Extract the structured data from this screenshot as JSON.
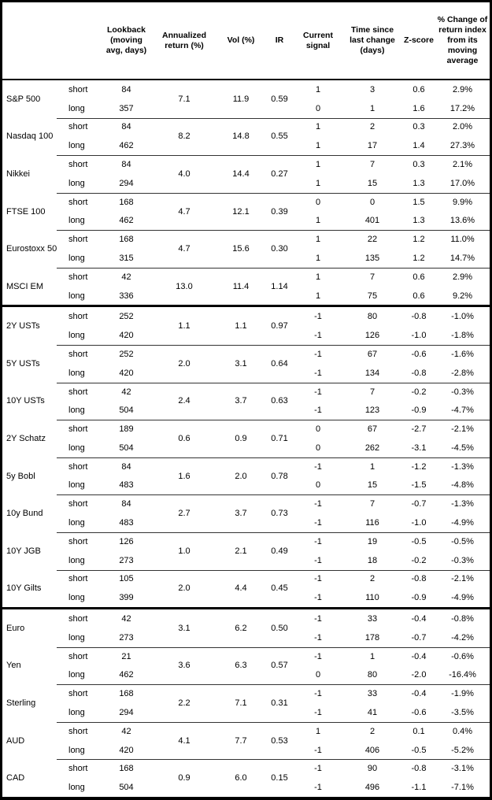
{
  "header": {
    "corner": "",
    "labels": [
      "Lookback\n(moving\navg, days)",
      "Annualized\nreturn (%)",
      "Vol (%)",
      "IR",
      "Current\nsignal",
      "Time since\nlast change\n(days)",
      "Z-score",
      "% Change of\nreturn index\nfrom its\nmoving\naverage"
    ]
  },
  "groups": [
    {
      "name": "S&P 500",
      "section": "equities",
      "annualized_return": "7.1",
      "vol": "11.9",
      "ir": "0.59",
      "rows": [
        {
          "side": "short",
          "lookback": "84",
          "signal": "1",
          "time_since_change": "3",
          "z_score": "0.6",
          "pct_change": "2.9%"
        },
        {
          "side": "long",
          "lookback": "357",
          "signal": "0",
          "time_since_change": "1",
          "z_score": "1.6",
          "pct_change": "17.2%"
        }
      ]
    },
    {
      "name": "Nasdaq 100",
      "section": "equities",
      "annualized_return": "8.2",
      "vol": "14.8",
      "ir": "0.55",
      "rows": [
        {
          "side": "short",
          "lookback": "84",
          "signal": "1",
          "time_since_change": "2",
          "z_score": "0.3",
          "pct_change": "2.0%"
        },
        {
          "side": "long",
          "lookback": "462",
          "signal": "1",
          "time_since_change": "17",
          "z_score": "1.4",
          "pct_change": "27.3%"
        }
      ]
    },
    {
      "name": "Nikkei",
      "section": "equities",
      "annualized_return": "4.0",
      "vol": "14.4",
      "ir": "0.27",
      "rows": [
        {
          "side": "short",
          "lookback": "84",
          "signal": "1",
          "time_since_change": "7",
          "z_score": "0.3",
          "pct_change": "2.1%"
        },
        {
          "side": "long",
          "lookback": "294",
          "signal": "1",
          "time_since_change": "15",
          "z_score": "1.3",
          "pct_change": "17.0%"
        }
      ]
    },
    {
      "name": "FTSE 100",
      "section": "equities",
      "annualized_return": "4.7",
      "vol": "12.1",
      "ir": "0.39",
      "rows": [
        {
          "side": "short",
          "lookback": "168",
          "signal": "0",
          "time_since_change": "0",
          "z_score": "1.5",
          "pct_change": "9.9%"
        },
        {
          "side": "long",
          "lookback": "462",
          "signal": "1",
          "time_since_change": "401",
          "z_score": "1.3",
          "pct_change": "13.6%"
        }
      ]
    },
    {
      "name": "Eurostoxx 50",
      "section": "equities",
      "annualized_return": "4.7",
      "vol": "15.6",
      "ir": "0.30",
      "rows": [
        {
          "side": "short",
          "lookback": "168",
          "signal": "1",
          "time_since_change": "22",
          "z_score": "1.2",
          "pct_change": "11.0%"
        },
        {
          "side": "long",
          "lookback": "315",
          "signal": "1",
          "time_since_change": "135",
          "z_score": "1.2",
          "pct_change": "14.7%"
        }
      ]
    },
    {
      "name": "MSCI EM",
      "section": "equities",
      "annualized_return": "13.0",
      "vol": "11.4",
      "ir": "1.14",
      "rows": [
        {
          "side": "short",
          "lookback": "42",
          "signal": "1",
          "time_since_change": "7",
          "z_score": "0.6",
          "pct_change": "2.9%"
        },
        {
          "side": "long",
          "lookback": "336",
          "signal": "1",
          "time_since_change": "75",
          "z_score": "0.6",
          "pct_change": "9.2%"
        }
      ]
    },
    {
      "name": "2Y USTs",
      "section": "bonds",
      "annualized_return": "1.1",
      "vol": "1.1",
      "ir": "0.97",
      "rows": [
        {
          "side": "short",
          "lookback": "252",
          "signal": "-1",
          "time_since_change": "80",
          "z_score": "-0.8",
          "pct_change": "-1.0%"
        },
        {
          "side": "long",
          "lookback": "420",
          "signal": "-1",
          "time_since_change": "126",
          "z_score": "-1.0",
          "pct_change": "-1.8%"
        }
      ]
    },
    {
      "name": "5Y USTs",
      "section": "bonds",
      "annualized_return": "2.0",
      "vol": "3.1",
      "ir": "0.64",
      "rows": [
        {
          "side": "short",
          "lookback": "252",
          "signal": "-1",
          "time_since_change": "67",
          "z_score": "-0.6",
          "pct_change": "-1.6%"
        },
        {
          "side": "long",
          "lookback": "420",
          "signal": "-1",
          "time_since_change": "134",
          "z_score": "-0.8",
          "pct_change": "-2.8%"
        }
      ]
    },
    {
      "name": "10Y USTs",
      "section": "bonds",
      "annualized_return": "2.4",
      "vol": "3.7",
      "ir": "0.63",
      "rows": [
        {
          "side": "short",
          "lookback": "42",
          "signal": "-1",
          "time_since_change": "7",
          "z_score": "-0.2",
          "pct_change": "-0.3%"
        },
        {
          "side": "long",
          "lookback": "504",
          "signal": "-1",
          "time_since_change": "123",
          "z_score": "-0.9",
          "pct_change": "-4.7%"
        }
      ]
    },
    {
      "name": "2Y Schatz",
      "section": "bonds",
      "annualized_return": "0.6",
      "vol": "0.9",
      "ir": "0.71",
      "rows": [
        {
          "side": "short",
          "lookback": "189",
          "signal": "0",
          "time_since_change": "67",
          "z_score": "-2.7",
          "pct_change": "-2.1%"
        },
        {
          "side": "long",
          "lookback": "504",
          "signal": "0",
          "time_since_change": "262",
          "z_score": "-3.1",
          "pct_change": "-4.5%"
        }
      ]
    },
    {
      "name": "5y Bobl",
      "section": "bonds",
      "annualized_return": "1.6",
      "vol": "2.0",
      "ir": "0.78",
      "rows": [
        {
          "side": "short",
          "lookback": "84",
          "signal": "-1",
          "time_since_change": "1",
          "z_score": "-1.2",
          "pct_change": "-1.3%"
        },
        {
          "side": "long",
          "lookback": "483",
          "signal": "0",
          "time_since_change": "15",
          "z_score": "-1.5",
          "pct_change": "-4.8%"
        }
      ]
    },
    {
      "name": "10y Bund",
      "section": "bonds",
      "annualized_return": "2.7",
      "vol": "3.7",
      "ir": "0.73",
      "rows": [
        {
          "side": "short",
          "lookback": "84",
          "signal": "-1",
          "time_since_change": "7",
          "z_score": "-0.7",
          "pct_change": "-1.3%"
        },
        {
          "side": "long",
          "lookback": "483",
          "signal": "-1",
          "time_since_change": "116",
          "z_score": "-1.0",
          "pct_change": "-4.9%"
        }
      ]
    },
    {
      "name": "10Y JGB",
      "section": "bonds",
      "annualized_return": "1.0",
      "vol": "2.1",
      "ir": "0.49",
      "rows": [
        {
          "side": "short",
          "lookback": "126",
          "signal": "-1",
          "time_since_change": "19",
          "z_score": "-0.5",
          "pct_change": "-0.5%"
        },
        {
          "side": "long",
          "lookback": "273",
          "signal": "-1",
          "time_since_change": "18",
          "z_score": "-0.2",
          "pct_change": "-0.3%"
        }
      ]
    },
    {
      "name": "10Y Gilts",
      "section": "bonds",
      "annualized_return": "2.0",
      "vol": "4.4",
      "ir": "0.45",
      "rows": [
        {
          "side": "short",
          "lookback": "105",
          "signal": "-1",
          "time_since_change": "2",
          "z_score": "-0.8",
          "pct_change": "-2.1%"
        },
        {
          "side": "long",
          "lookback": "399",
          "signal": "-1",
          "time_since_change": "110",
          "z_score": "-0.9",
          "pct_change": "-4.9%"
        }
      ]
    },
    {
      "name": "Euro",
      "section": "fx",
      "annualized_return": "3.1",
      "vol": "6.2",
      "ir": "0.50",
      "rows": [
        {
          "side": "short",
          "lookback": "42",
          "signal": "-1",
          "time_since_change": "33",
          "z_score": "-0.4",
          "pct_change": "-0.8%"
        },
        {
          "side": "long",
          "lookback": "273",
          "signal": "-1",
          "time_since_change": "178",
          "z_score": "-0.7",
          "pct_change": "-4.2%"
        }
      ]
    },
    {
      "name": "Yen",
      "section": "fx",
      "annualized_return": "3.6",
      "vol": "6.3",
      "ir": "0.57",
      "rows": [
        {
          "side": "short",
          "lookback": "21",
          "signal": "-1",
          "time_since_change": "1",
          "z_score": "-0.4",
          "pct_change": "-0.6%"
        },
        {
          "side": "long",
          "lookback": "462",
          "signal": "0",
          "time_since_change": "80",
          "z_score": "-2.0",
          "pct_change": "-16.4%"
        }
      ]
    },
    {
      "name": "Sterling",
      "section": "fx",
      "annualized_return": "2.2",
      "vol": "7.1",
      "ir": "0.31",
      "rows": [
        {
          "side": "short",
          "lookback": "168",
          "signal": "-1",
          "time_since_change": "33",
          "z_score": "-0.4",
          "pct_change": "-1.9%"
        },
        {
          "side": "long",
          "lookback": "294",
          "signal": "-1",
          "time_since_change": "41",
          "z_score": "-0.6",
          "pct_change": "-3.5%"
        }
      ]
    },
    {
      "name": "AUD",
      "section": "fx",
      "annualized_return": "4.1",
      "vol": "7.7",
      "ir": "0.53",
      "rows": [
        {
          "side": "short",
          "lookback": "42",
          "signal": "1",
          "time_since_change": "2",
          "z_score": "0.1",
          "pct_change": "0.4%"
        },
        {
          "side": "long",
          "lookback": "420",
          "signal": "-1",
          "time_since_change": "406",
          "z_score": "-0.5",
          "pct_change": "-5.2%"
        }
      ]
    },
    {
      "name": "CAD",
      "section": "fx",
      "annualized_return": "0.9",
      "vol": "6.0",
      "ir": "0.15",
      "rows": [
        {
          "side": "short",
          "lookback": "168",
          "signal": "-1",
          "time_since_change": "90",
          "z_score": "-0.8",
          "pct_change": "-3.1%"
        },
        {
          "side": "long",
          "lookback": "504",
          "signal": "-1",
          "time_since_change": "496",
          "z_score": "-1.1",
          "pct_change": "-7.1%"
        }
      ]
    }
  ]
}
